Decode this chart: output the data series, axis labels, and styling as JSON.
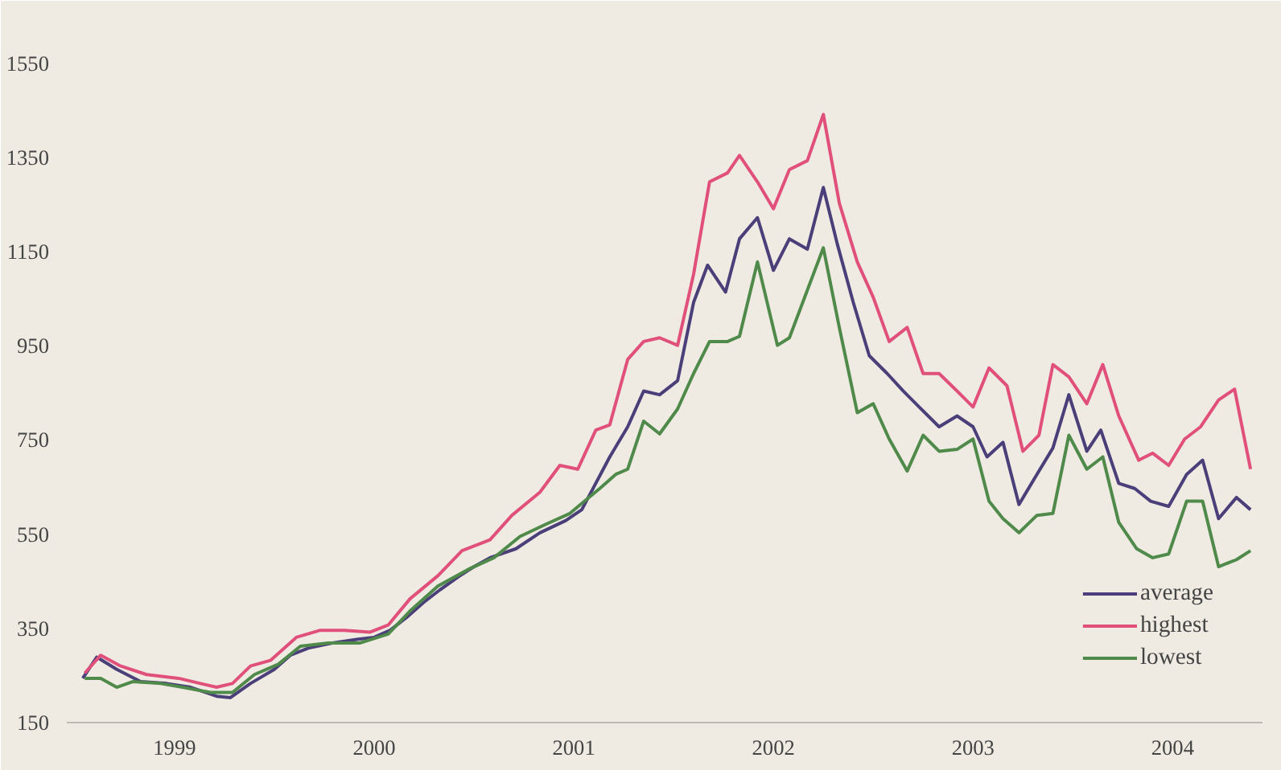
{
  "chart_data": {
    "type": "line",
    "xlim": [
      1998.96,
      2004.95
    ],
    "ylim": [
      150,
      1580
    ],
    "xticks": [
      {
        "value": 1999.5,
        "label": "1999"
      },
      {
        "value": 2000.5,
        "label": "2000"
      },
      {
        "value": 2001.5,
        "label": "2001"
      },
      {
        "value": 2002.5,
        "label": "2002"
      },
      {
        "value": 2003.5,
        "label": "2003"
      },
      {
        "value": 2004.5,
        "label": "2004"
      }
    ],
    "yticks": [
      150,
      350,
      550,
      750,
      950,
      1150,
      1350,
      1550
    ],
    "grid": false,
    "legend": "bottom right",
    "line_style": "solid",
    "marker": "none",
    "series": [
      {
        "name": "average",
        "color": "#4b3f7a",
        "x": [
          1999.04,
          1999.11,
          1999.21,
          1999.33,
          1999.46,
          1999.58,
          1999.71,
          1999.78,
          1999.88,
          2000.0,
          2000.08,
          2000.17,
          2000.29,
          2000.42,
          2000.5,
          2000.58,
          2000.67,
          2000.75,
          2000.83,
          2000.92,
          2001.0,
          2001.08,
          2001.21,
          2001.33,
          2001.46,
          2001.54,
          2001.68,
          2001.77,
          2001.85,
          2001.93,
          2002.02,
          2002.1,
          2002.17,
          2002.26,
          2002.33,
          2002.42,
          2002.5,
          2002.58,
          2002.67,
          2002.75,
          2002.82,
          2002.9,
          2002.98,
          2003.07,
          2003.15,
          2003.23,
          2003.33,
          2003.42,
          2003.5,
          2003.57,
          2003.65,
          2003.73,
          2003.82,
          2003.9,
          2003.98,
          2004.07,
          2004.14,
          2004.23,
          2004.31,
          2004.39,
          2004.48,
          2004.57,
          2004.65,
          2004.73,
          2004.82,
          2004.89
        ],
        "values": [
          244,
          289,
          263,
          237,
          233,
          225,
          206,
          203,
          233,
          263,
          293,
          308,
          319,
          327,
          331,
          346,
          376,
          406,
          432,
          459,
          481,
          500,
          519,
          553,
          579,
          602,
          714,
          778,
          854,
          846,
          876,
          1042,
          1121,
          1064,
          1177,
          1222,
          1110,
          1177,
          1155,
          1286,
          1166,
          1042,
          929,
          891,
          854,
          820,
          778,
          801,
          778,
          714,
          745,
          613,
          677,
          733,
          846,
          726,
          771,
          658,
          647,
          620,
          609,
          677,
          707,
          583,
          628,
          602
        ]
      },
      {
        "name": "highest",
        "color": "#e0507a",
        "x": [
          1999.05,
          1999.13,
          1999.23,
          1999.36,
          1999.52,
          1999.63,
          1999.71,
          1999.79,
          1999.88,
          1999.98,
          2000.11,
          2000.23,
          2000.35,
          2000.48,
          2000.57,
          2000.68,
          2000.82,
          2000.94,
          2001.08,
          2001.19,
          2001.33,
          2001.43,
          2001.52,
          2001.61,
          2001.68,
          2001.77,
          2001.85,
          2001.93,
          2002.02,
          2002.1,
          2002.18,
          2002.27,
          2002.33,
          2002.42,
          2002.5,
          2002.58,
          2002.67,
          2002.75,
          2002.83,
          2002.92,
          2003.0,
          2003.08,
          2003.17,
          2003.25,
          2003.33,
          2003.42,
          2003.5,
          2003.58,
          2003.67,
          2003.75,
          2003.83,
          2003.9,
          2003.98,
          2004.07,
          2004.15,
          2004.23,
          2004.33,
          2004.4,
          2004.48,
          2004.56,
          2004.64,
          2004.73,
          2004.81,
          2004.89
        ],
        "values": [
          255,
          293,
          270,
          252,
          244,
          233,
          225,
          233,
          270,
          282,
          331,
          346,
          346,
          342,
          357,
          413,
          462,
          515,
          538,
          590,
          639,
          696,
          688,
          771,
          782,
          921,
          959,
          967,
          951,
          1102,
          1298,
          1317,
          1354,
          1298,
          1241,
          1324,
          1343,
          1441,
          1253,
          1128,
          1053,
          959,
          989,
          891,
          891,
          854,
          820,
          903,
          865,
          726,
          760,
          910,
          884,
          827,
          910,
          801,
          707,
          722,
          696,
          752,
          778,
          835,
          858,
          688
        ]
      },
      {
        "name": "lowest",
        "color": "#4f8a4a",
        "x": [
          1999.05,
          1999.13,
          1999.21,
          1999.29,
          1999.43,
          1999.54,
          1999.68,
          1999.79,
          1999.9,
          2000.02,
          2000.13,
          2000.27,
          2000.43,
          2000.57,
          2000.68,
          2000.82,
          2000.98,
          2001.1,
          2001.23,
          2001.36,
          2001.48,
          2001.63,
          2001.71,
          2001.77,
          2001.85,
          2001.93,
          2002.02,
          2002.1,
          2002.18,
          2002.27,
          2002.33,
          2002.42,
          2002.52,
          2002.58,
          2002.75,
          2002.83,
          2002.92,
          2003.0,
          2003.08,
          2003.17,
          2003.25,
          2003.33,
          2003.42,
          2003.5,
          2003.58,
          2003.65,
          2003.73,
          2003.82,
          2003.9,
          2003.98,
          2004.07,
          2004.15,
          2004.23,
          2004.32,
          2004.4,
          2004.48,
          2004.57,
          2004.65,
          2004.73,
          2004.82,
          2004.89
        ],
        "values": [
          244,
          244,
          225,
          237,
          233,
          225,
          214,
          214,
          252,
          274,
          312,
          319,
          319,
          338,
          387,
          440,
          477,
          500,
          545,
          571,
          594,
          647,
          677,
          688,
          790,
          763,
          816,
          891,
          959,
          959,
          970,
          1128,
          951,
          967,
          1158,
          989,
          808,
          827,
          752,
          684,
          760,
          726,
          730,
          752,
          620,
          583,
          553,
          590,
          594,
          760,
          688,
          714,
          575,
          519,
          500,
          508,
          620,
          620,
          481,
          496,
          515
        ]
      }
    ]
  }
}
